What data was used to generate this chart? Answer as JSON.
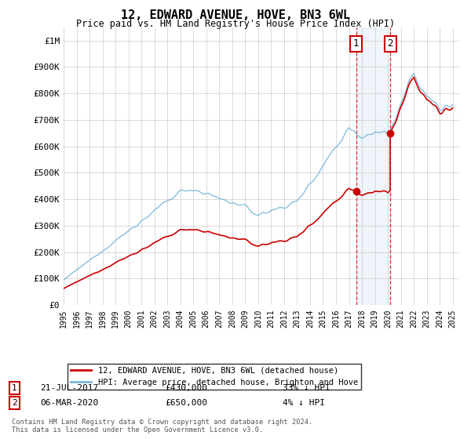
{
  "title": "12, EDWARD AVENUE, HOVE, BN3 6WL",
  "subtitle": "Price paid vs. HM Land Registry's House Price Index (HPI)",
  "footer": "Contains HM Land Registry data © Crown copyright and database right 2024.\nThis data is licensed under the Open Government Licence v3.0.",
  "legend_line1": "12, EDWARD AVENUE, HOVE, BN3 6WL (detached house)",
  "legend_line2": "HPI: Average price, detached house, Brighton and Hove",
  "annotation1": {
    "num": "1",
    "date": "21-JUL-2017",
    "price": "£430,000",
    "note": "33% ↓ HPI"
  },
  "annotation2": {
    "num": "2",
    "date": "06-MAR-2020",
    "price": "£650,000",
    "note": "4% ↓ HPI"
  },
  "sale1_x": 2017.55,
  "sale1_y": 430000,
  "sale2_x": 2020.18,
  "sale2_y": 650000,
  "shade_x1": 2017.55,
  "shade_x2": 2020.18,
  "hpi_color": "#7bb8d8",
  "sale_color": "#cc0000",
  "shade_color": "#cce0f0",
  "vline_color": "#cc0000",
  "annotation_box_color": "#cc0000",
  "ylim": [
    0,
    1050000
  ],
  "xlim": [
    1995,
    2025.5
  ],
  "yticks": [
    0,
    100000,
    200000,
    300000,
    400000,
    500000,
    600000,
    700000,
    800000,
    900000,
    1000000
  ],
  "ytick_labels": [
    "£0",
    "£100K",
    "£200K",
    "£300K",
    "£400K",
    "£500K",
    "£600K",
    "£700K",
    "£800K",
    "£900K",
    "£1M"
  ]
}
